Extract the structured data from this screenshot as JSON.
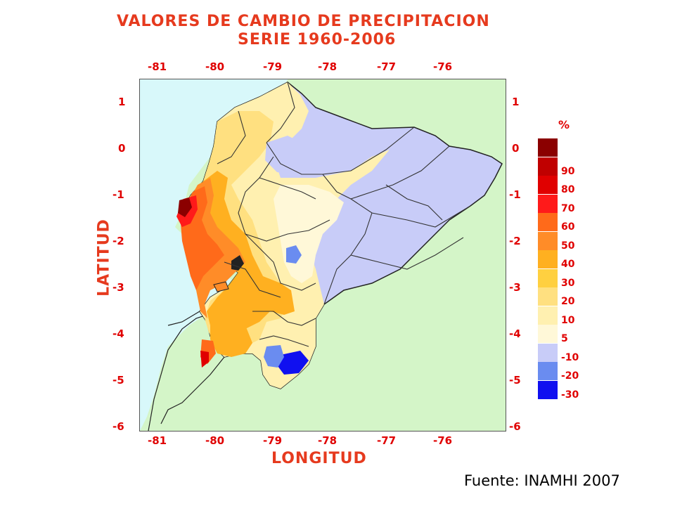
{
  "title_line1": "VALORES DE CAMBIO DE PRECIPITACION",
  "title_line2": "SERIE 1960-2006",
  "x_axis": {
    "label": "LONGITUD",
    "ticks": [
      "-81",
      "-80",
      "-79",
      "-78",
      "-77",
      "-76"
    ]
  },
  "y_axis": {
    "label": "LATITUD",
    "ticks": [
      "1",
      "0",
      "-1",
      "-2",
      "-3",
      "-4",
      "-5",
      "-6"
    ]
  },
  "legend": {
    "unit": "%",
    "items": [
      {
        "label": "",
        "color": "#8b0000"
      },
      {
        "label": "90",
        "color": "#c00000"
      },
      {
        "label": "80",
        "color": "#e00000"
      },
      {
        "label": "70",
        "color": "#ff1a1a"
      },
      {
        "label": "60",
        "color": "#ff6a1a"
      },
      {
        "label": "50",
        "color": "#ff8c28"
      },
      {
        "label": "40",
        "color": "#ffb020"
      },
      {
        "label": "30",
        "color": "#ffd040"
      },
      {
        "label": "20",
        "color": "#ffe080"
      },
      {
        "label": "10",
        "color": "#fff0b0"
      },
      {
        "label": "5",
        "color": "#fff8d8"
      },
      {
        "label": "-10",
        "color": "#c8ccf8"
      },
      {
        "label": "-20",
        "color": "#6a8cf0"
      },
      {
        "label": "-30",
        "color": "#1010f0"
      }
    ]
  },
  "colors": {
    "ocean": "#d8f8fa",
    "land_outside": "#d4f5c8",
    "title": "#e63a1e",
    "tick": "#e00000"
  },
  "source": "Fuente: INAMHI 2007"
}
